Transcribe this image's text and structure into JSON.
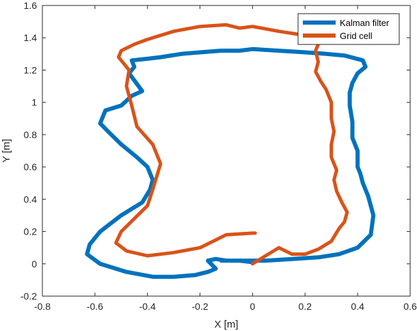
{
  "chart_data": {
    "type": "line",
    "title": "",
    "xlabel": "X [m]",
    "ylabel": "Y [m]",
    "xlim": [
      -0.8,
      0.6
    ],
    "ylim": [
      -0.2,
      1.6
    ],
    "xticks": [
      "-0.8",
      "-0.6",
      "-0.4",
      "-0.2",
      "0",
      "0.2",
      "0.4",
      "0.6"
    ],
    "yticks": [
      "-0.2",
      "0",
      "0.2",
      "0.4",
      "0.6",
      "0.8",
      "1",
      "1.2",
      "1.4",
      "1.6"
    ],
    "grid": false,
    "legend_position": "top-right",
    "series": [
      {
        "name": "Kalman filter",
        "color": "#0072BD",
        "x": [
          -0.12,
          -0.02,
          0.05,
          0.15,
          0.25,
          0.33,
          0.4,
          0.45,
          0.46,
          0.44,
          0.42,
          0.41,
          0.4,
          0.4,
          0.38,
          0.38,
          0.37,
          0.37,
          0.38,
          0.4,
          0.43,
          0.42,
          0.35,
          0.28,
          0.2,
          0.1,
          0.0,
          -0.05,
          -0.12,
          -0.2,
          -0.27,
          -0.35,
          -0.4,
          -0.46,
          -0.45,
          -0.47,
          -0.42,
          -0.46,
          -0.5,
          -0.56,
          -0.58,
          -0.55,
          -0.5,
          -0.44,
          -0.4,
          -0.38,
          -0.39,
          -0.42,
          -0.5,
          -0.58,
          -0.62,
          -0.63,
          -0.58,
          -0.48,
          -0.38,
          -0.3,
          -0.22,
          -0.17,
          -0.14,
          -0.17,
          -0.14,
          -0.1,
          -0.05,
          0.0
        ],
        "y": [
          0.02,
          0.02,
          0.02,
          0.03,
          0.04,
          0.06,
          0.1,
          0.18,
          0.3,
          0.42,
          0.5,
          0.56,
          0.6,
          0.7,
          0.78,
          0.88,
          0.98,
          1.06,
          1.12,
          1.18,
          1.22,
          1.26,
          1.29,
          1.3,
          1.31,
          1.32,
          1.33,
          1.32,
          1.32,
          1.31,
          1.3,
          1.28,
          1.27,
          1.26,
          1.22,
          1.18,
          1.07,
          1.04,
          0.98,
          0.95,
          0.87,
          0.82,
          0.74,
          0.66,
          0.6,
          0.52,
          0.46,
          0.38,
          0.3,
          0.2,
          0.12,
          0.06,
          0.0,
          -0.05,
          -0.08,
          -0.08,
          -0.07,
          -0.05,
          -0.03,
          0.02,
          0.03,
          0.02,
          0.02,
          0.01
        ]
      },
      {
        "name": "Grid cell",
        "color": "#D95319",
        "x": [
          0.0,
          0.05,
          0.1,
          0.15,
          0.2,
          0.25,
          0.3,
          0.33,
          0.35,
          0.36,
          0.34,
          0.32,
          0.31,
          0.32,
          0.3,
          0.3,
          0.31,
          0.3,
          0.3,
          0.28,
          0.26,
          0.24,
          0.25,
          0.24,
          0.25,
          0.22,
          0.18,
          0.1,
          0.0,
          -0.05,
          -0.1,
          -0.2,
          -0.3,
          -0.4,
          -0.45,
          -0.5,
          -0.51,
          -0.47,
          -0.48,
          -0.46,
          -0.44,
          -0.38,
          -0.35,
          -0.38,
          -0.4,
          -0.45,
          -0.5,
          -0.52,
          -0.48,
          -0.4,
          -0.3,
          -0.2,
          -0.15,
          -0.1,
          0.0,
          0.01
        ],
        "y": [
          0.0,
          0.05,
          0.1,
          0.06,
          0.06,
          0.09,
          0.14,
          0.22,
          0.26,
          0.32,
          0.38,
          0.45,
          0.52,
          0.58,
          0.66,
          0.74,
          0.82,
          0.9,
          1.0,
          1.08,
          1.13,
          1.19,
          1.25,
          1.32,
          1.36,
          1.4,
          1.42,
          1.44,
          1.47,
          1.46,
          1.48,
          1.47,
          1.44,
          1.39,
          1.36,
          1.32,
          1.28,
          1.2,
          1.1,
          0.98,
          0.85,
          0.74,
          0.62,
          0.46,
          0.36,
          0.28,
          0.2,
          0.13,
          0.08,
          0.05,
          0.07,
          0.1,
          0.14,
          0.18,
          0.19,
          0.19
        ]
      }
    ]
  }
}
